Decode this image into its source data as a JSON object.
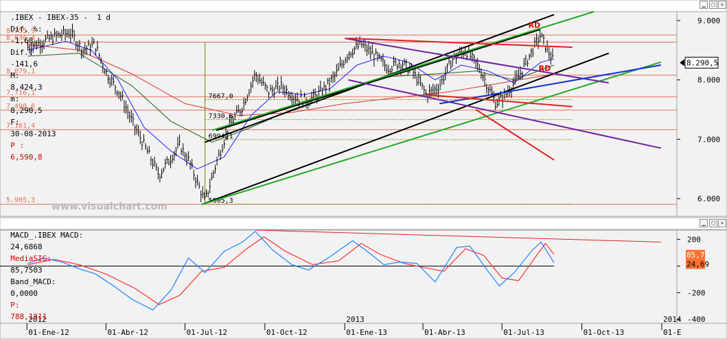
{
  "price_panel": {
    "header": {
      "symbol": ".IBEX - IBEX-35 -  1 d",
      "dif_pct_label": "Dif, %:",
      "dif_pct": "-1,68",
      "dif_label": "Dif.:",
      "dif": "-141,6",
      "max_label": "M:",
      "max": "8,424,3",
      "min_label": "m:",
      "min": "8,290,5",
      "date_label": "F:",
      "date": "30-08-2013",
      "p_label": "P :",
      "p": "6,590,8"
    },
    "watermark": "www.visualchart.com",
    "current_price_label": "8.290,5"
  },
  "macd_panel": {
    "header": {
      "macd_label": "MACD_.IBEX MACD:",
      "macd": "24,6868",
      "sig_label": "MediaSIG:",
      "sig": "85,7503",
      "band_label": "Band_MACD:",
      "band": "0,0000",
      "p_label": "P:",
      "p": "788,1811"
    },
    "sig_value_label": "85,75",
    "macd_value_label": "24,69"
  },
  "colors": {
    "price_bars": "#000000",
    "ma_fast": "#2020ff",
    "ma_mid": "#206020",
    "ma_slow": "#e03030",
    "macd_line": "#2080ff",
    "signal_line": "#ff3030",
    "fib_lines": "#e07050",
    "channel_black": "#000000",
    "channel_green": "#22aa22",
    "trend_purple": "#7020a0",
    "trend_blue": "#1030d0",
    "trend_red": "#e02020"
  },
  "chart_data": [
    {
      "type": "line",
      "title": "",
      "y_axis": {
        "ticks": [
          6000,
          7000,
          8000,
          9000
        ],
        "tick_labels": [
          "6.000",
          "7.000",
          "8.000",
          "9.000"
        ],
        "ylim": [
          5700,
          9150
        ]
      },
      "x_axis": {
        "ticks": [
          "2012-01-01",
          "2012-04-01",
          "2012-07-01",
          "2012-10-01",
          "2013-01-01",
          "2013-04-01",
          "2013-07-01",
          "2013-10-01",
          "2014-01-01"
        ],
        "tick_labels": [
          "01-Ene-12",
          "01-Abr-12",
          "01-Jul-12",
          "01-Oct-12",
          "01-Ene-13",
          "01-Abr-13",
          "01-Jul-13",
          "01-Oct-13",
          "01-E"
        ],
        "year_labels": [
          {
            "date": "2012-01-01",
            "label": "2012"
          },
          {
            "date": "2013-01-01",
            "label": "2013"
          },
          {
            "date": "2014-01-01",
            "label": "2014"
          }
        ]
      },
      "series": [
        {
          "key": "close",
          "values": [
            [
              "2012-01-02",
              8550
            ],
            [
              "2012-01-20",
              8650
            ],
            [
              "2012-02-06",
              8750
            ],
            [
              "2012-02-20",
              8800
            ],
            [
              "2012-03-05",
              8500
            ],
            [
              "2012-03-19",
              8600
            ],
            [
              "2012-04-02",
              8100
            ],
            [
              "2012-04-16",
              7800
            ],
            [
              "2012-05-01",
              7300
            ],
            [
              "2012-05-15",
              6900
            ],
            [
              "2012-06-01",
              6400
            ],
            [
              "2012-06-15",
              6700
            ],
            [
              "2012-06-25",
              6900
            ],
            [
              "2012-07-05",
              6650
            ],
            [
              "2012-07-24",
              5950
            ],
            [
              "2012-08-06",
              6600
            ],
            [
              "2012-08-20",
              7200
            ],
            [
              "2012-09-05",
              7550
            ],
            [
              "2012-09-20",
              8100
            ],
            [
              "2012-10-05",
              7800
            ],
            [
              "2012-10-20",
              7900
            ],
            [
              "2012-11-05",
              7700
            ],
            [
              "2012-11-20",
              7650
            ],
            [
              "2012-12-05",
              7800
            ],
            [
              "2012-12-20",
              8050
            ],
            [
              "2013-01-05",
              8450
            ],
            [
              "2013-01-20",
              8600
            ],
            [
              "2013-02-05",
              8400
            ],
            [
              "2013-02-20",
              8200
            ],
            [
              "2013-03-05",
              8300
            ],
            [
              "2013-03-20",
              8150
            ],
            [
              "2013-04-05",
              7750
            ],
            [
              "2013-04-20",
              7900
            ],
            [
              "2013-05-05",
              8350
            ],
            [
              "2013-05-20",
              8500
            ],
            [
              "2013-06-05",
              8200
            ],
            [
              "2013-06-24",
              7600
            ],
            [
              "2013-07-05",
              7750
            ],
            [
              "2013-07-20",
              8050
            ],
            [
              "2013-08-05",
              8500
            ],
            [
              "2013-08-14",
              8750
            ],
            [
              "2013-08-30",
              8290
            ]
          ]
        },
        {
          "key": "ma_fast",
          "values": [
            [
              "2012-01-02",
              8500
            ],
            [
              "2012-02-15",
              8650
            ],
            [
              "2012-03-15",
              8500
            ],
            [
              "2012-04-15",
              8000
            ],
            [
              "2012-05-15",
              7200
            ],
            [
              "2012-06-15",
              6800
            ],
            [
              "2012-07-15",
              6500
            ],
            [
              "2012-08-15",
              6700
            ],
            [
              "2012-09-15",
              7400
            ],
            [
              "2012-10-15",
              7800
            ],
            [
              "2012-11-15",
              7750
            ],
            [
              "2012-12-15",
              7850
            ],
            [
              "2013-01-15",
              8250
            ],
            [
              "2013-02-15",
              8400
            ],
            [
              "2013-03-15",
              8300
            ],
            [
              "2013-04-15",
              8000
            ],
            [
              "2013-05-15",
              8250
            ],
            [
              "2013-06-15",
              8150
            ],
            [
              "2013-07-15",
              7950
            ],
            [
              "2013-08-15",
              8300
            ],
            [
              "2013-08-30",
              8350
            ]
          ]
        },
        {
          "key": "ma_mid",
          "values": [
            [
              "2012-01-02",
              8400
            ],
            [
              "2012-03-01",
              8450
            ],
            [
              "2012-05-01",
              7900
            ],
            [
              "2012-06-15",
              7300
            ],
            [
              "2012-08-01",
              6950
            ],
            [
              "2012-09-15",
              7200
            ],
            [
              "2012-11-01",
              7500
            ],
            [
              "2013-01-01",
              7800
            ],
            [
              "2013-02-15",
              8050
            ],
            [
              "2013-04-15",
              8100
            ],
            [
              "2013-06-01",
              8150
            ],
            [
              "2013-07-15",
              8000
            ],
            [
              "2013-08-30",
              8250
            ]
          ]
        },
        {
          "key": "ma_slow",
          "values": [
            [
              "2012-01-02",
              8600
            ],
            [
              "2012-03-01",
              8500
            ],
            [
              "2012-05-01",
              8100
            ],
            [
              "2012-07-01",
              7600
            ],
            [
              "2012-09-01",
              7400
            ],
            [
              "2012-11-01",
              7450
            ],
            [
              "2013-01-01",
              7600
            ],
            [
              "2013-03-01",
              7700
            ],
            [
              "2013-05-01",
              7800
            ],
            [
              "2013-07-01",
              7950
            ],
            [
              "2013-08-30",
              8100
            ]
          ]
        }
      ],
      "horizontal_levels": [
        {
          "value": 8755.9,
          "label": "8.755,9"
        },
        {
          "value": 8636.4,
          "label": "8.636,4"
        },
        {
          "value": 8079.1,
          "label": "8.079,1"
        },
        {
          "value": 7716.1,
          "label": "7.716,1"
        },
        {
          "value": 7490.6,
          "label": "7.490,6"
        },
        {
          "value": 7161.4,
          "label": "7.161,4"
        },
        {
          "value": 5905.3,
          "label": "5.905,3"
        }
      ],
      "inner_levels": [
        {
          "value": 7667.0,
          "label": "7667,0"
        },
        {
          "value": 7330.6,
          "label": "7330,6"
        },
        {
          "value": 6994.1,
          "label": "6994,1"
        },
        {
          "value": 5905.3,
          "label": "5905,3"
        }
      ],
      "trendlines": [
        {
          "color": "channel_black",
          "points": [
            [
              "2012-07-24",
              6950
            ],
            [
              "2013-08-30",
              9100
            ]
          ]
        },
        {
          "color": "channel_black",
          "points": [
            [
              "2012-08-06",
              7150
            ],
            [
              "2013-08-14",
              8850
            ]
          ]
        },
        {
          "color": "channel_black",
          "points": [
            [
              "2012-07-20",
              5900
            ],
            [
              "2013-11-01",
              8450
            ]
          ]
        },
        {
          "color": "channel_green",
          "points": [
            [
              "2012-08-01",
              7150
            ],
            [
              "2013-10-15",
              9150
            ]
          ]
        },
        {
          "color": "channel_green",
          "points": [
            [
              "2012-07-20",
              5900
            ],
            [
              "2013-12-31",
              8300
            ]
          ]
        },
        {
          "color": "trend_purple",
          "points": [
            [
              "2013-01-01",
              8700
            ],
            [
              "2013-11-01",
              7950
            ]
          ]
        },
        {
          "color": "trend_purple",
          "points": [
            [
              "2013-01-05",
              8000
            ],
            [
              "2013-12-31",
              6850
            ]
          ]
        },
        {
          "color": "trend_blue",
          "points": [
            [
              "2013-04-20",
              7600
            ],
            [
              "2013-12-31",
              8250
            ]
          ]
        },
        {
          "color": "trend_red",
          "points": [
            [
              "2013-01-05",
              8700
            ],
            [
              "2013-09-20",
              8550
            ]
          ]
        },
        {
          "color": "trend_red",
          "points": [
            [
              "2013-04-05",
              7750
            ],
            [
              "2013-09-20",
              7550
            ]
          ]
        },
        {
          "color": "trend_red",
          "points": [
            [
              "2013-06-01",
              7500
            ],
            [
              "2013-08-30",
              6650
            ]
          ]
        }
      ],
      "annotations": [
        {
          "text": "RD",
          "date": "2013-08-05",
          "value": 8880
        },
        {
          "text": "RD",
          "date": "2013-08-17",
          "value": 8150
        }
      ]
    },
    {
      "type": "line",
      "title": "",
      "y_axis": {
        "ticks": [
          200,
          0,
          -200,
          -400
        ],
        "tick_labels": [
          "200",
          "0",
          "-200",
          "-400"
        ],
        "ylim": [
          -430,
          270
        ]
      },
      "series": [
        {
          "key": "macd",
          "values": [
            [
              "2012-01-02",
              20
            ],
            [
              "2012-01-20",
              60
            ],
            [
              "2012-02-10",
              30
            ],
            [
              "2012-03-01",
              -20
            ],
            [
              "2012-03-20",
              -60
            ],
            [
              "2012-04-10",
              -150
            ],
            [
              "2012-05-01",
              -250
            ],
            [
              "2012-05-25",
              -330
            ],
            [
              "2012-06-15",
              -180
            ],
            [
              "2012-07-05",
              60
            ],
            [
              "2012-07-24",
              -50
            ],
            [
              "2012-08-15",
              110
            ],
            [
              "2012-09-05",
              180
            ],
            [
              "2012-09-20",
              260
            ],
            [
              "2012-10-10",
              120
            ],
            [
              "2012-11-01",
              10
            ],
            [
              "2012-11-20",
              -30
            ],
            [
              "2012-12-15",
              70
            ],
            [
              "2013-01-10",
              190
            ],
            [
              "2013-01-25",
              120
            ],
            [
              "2013-02-15",
              10
            ],
            [
              "2013-03-05",
              30
            ],
            [
              "2013-03-25",
              20
            ],
            [
              "2013-04-15",
              -120
            ],
            [
              "2013-05-10",
              140
            ],
            [
              "2013-05-25",
              150
            ],
            [
              "2013-06-15",
              -40
            ],
            [
              "2013-06-28",
              -150
            ],
            [
              "2013-07-15",
              -50
            ],
            [
              "2013-08-05",
              120
            ],
            [
              "2013-08-15",
              180
            ],
            [
              "2013-08-30",
              24.69
            ]
          ]
        },
        {
          "key": "signal",
          "values": [
            [
              "2012-01-02",
              10
            ],
            [
              "2012-02-01",
              50
            ],
            [
              "2012-03-01",
              10
            ],
            [
              "2012-04-01",
              -60
            ],
            [
              "2012-05-05",
              -170
            ],
            [
              "2012-06-01",
              -290
            ],
            [
              "2012-06-25",
              -220
            ],
            [
              "2012-07-20",
              -40
            ],
            [
              "2012-08-15",
              -10
            ],
            [
              "2012-09-10",
              130
            ],
            [
              "2012-09-30",
              220
            ],
            [
              "2012-10-25",
              110
            ],
            [
              "2012-11-25",
              10
            ],
            [
              "2012-12-25",
              40
            ],
            [
              "2013-01-20",
              170
            ],
            [
              "2013-02-10",
              90
            ],
            [
              "2013-03-10",
              20
            ],
            [
              "2013-04-01",
              -10
            ],
            [
              "2013-04-25",
              -40
            ],
            [
              "2013-05-20",
              130
            ],
            [
              "2013-06-10",
              80
            ],
            [
              "2013-07-01",
              -90
            ],
            [
              "2013-07-20",
              -110
            ],
            [
              "2013-08-10",
              80
            ],
            [
              "2013-08-20",
              170
            ],
            [
              "2013-08-30",
              85.75
            ]
          ]
        }
      ],
      "trendlines": [
        {
          "color": "trend_red",
          "points": [
            [
              "2012-09-20",
              270
            ],
            [
              "2013-12-31",
              180
            ]
          ]
        }
      ]
    }
  ]
}
